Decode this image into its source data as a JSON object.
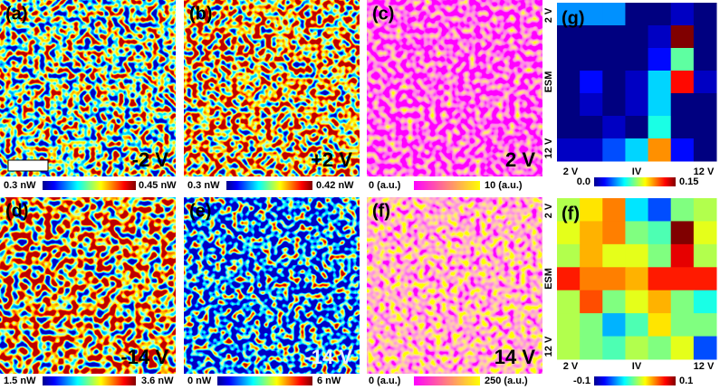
{
  "panels": [
    {
      "label": "(a)",
      "voltage": "-2 V",
      "cbar_min": "0.3 nW",
      "cbar_max": "0.45 nW"
    },
    {
      "label": "(b)",
      "voltage": "+2 V",
      "cbar_min": "0.3 nW",
      "cbar_max": "0.42 nW"
    },
    {
      "label": "(c)",
      "voltage": "2 V",
      "cbar_min": "0 (a.u.)",
      "cbar_max": "10 (a.u.)"
    },
    {
      "label": "(d)",
      "voltage": "-14 V",
      "cbar_min": "1.5 nW",
      "cbar_max": "3.6 nW"
    },
    {
      "label": "(e)",
      "voltage": "-14 V",
      "cbar_min": "0 nW",
      "cbar_max": "6 nW"
    },
    {
      "label": "(f)",
      "voltage": "14 V",
      "cbar_min": "0 (a.u.)",
      "cbar_max": "250 (a.u.)"
    }
  ],
  "chart_data": [
    {
      "type": "heatmap",
      "title": "(g)",
      "y_axis_labels": [
        "2 V",
        "ESM",
        "12 V"
      ],
      "x_axis_labels": [
        "2 V",
        "IV",
        "12 V"
      ],
      "zlim": [
        0,
        0.15
      ],
      "zticks": [
        {
          "value": 0,
          "label": "0.0"
        },
        0.15
      ],
      "z": [
        [
          0.04,
          0.04,
          0.04,
          0,
          0,
          0.01,
          0
        ],
        [
          0,
          0,
          0,
          0,
          0.01,
          0.15,
          0
        ],
        [
          0,
          0,
          0,
          0,
          0.02,
          0.07,
          0
        ],
        [
          0,
          0.02,
          0,
          0.01,
          0.05,
          0.13,
          0.01
        ],
        [
          0,
          0.01,
          0,
          0.01,
          0.05,
          0,
          0
        ],
        [
          0,
          0,
          0.01,
          0,
          0.06,
          0,
          0
        ],
        [
          0.01,
          0.01,
          0.03,
          0.05,
          0.11,
          0.02,
          0
        ]
      ]
    },
    {
      "type": "heatmap",
      "title": "(f)",
      "y_axis_labels": [
        "2 V",
        "ESM",
        "12 V"
      ],
      "x_axis_labels": [
        "2 V",
        "IV",
        "12 V"
      ],
      "zlim": [
        -0.1,
        0.1
      ],
      "zticks": [
        -0.1,
        0.1
      ],
      "z": [
        [
          0.01,
          0.03,
          0.05,
          -0.03,
          -0.06,
          0,
          0.01
        ],
        [
          0.02,
          0.04,
          0.05,
          0,
          -0.01,
          0.1,
          0.02
        ],
        [
          0.01,
          0.04,
          0.02,
          0.02,
          0,
          0.08,
          0.01
        ],
        [
          0.07,
          0.05,
          0.05,
          0.04,
          0.07,
          0.07,
          0.07
        ],
        [
          0.01,
          0.06,
          0,
          0.02,
          0.04,
          0,
          -0.02
        ],
        [
          0.01,
          0,
          -0.04,
          -0.01,
          0.03,
          0,
          0
        ],
        [
          0.01,
          0,
          -0.01,
          0.01,
          0,
          0.02,
          -0.06
        ]
      ]
    }
  ]
}
